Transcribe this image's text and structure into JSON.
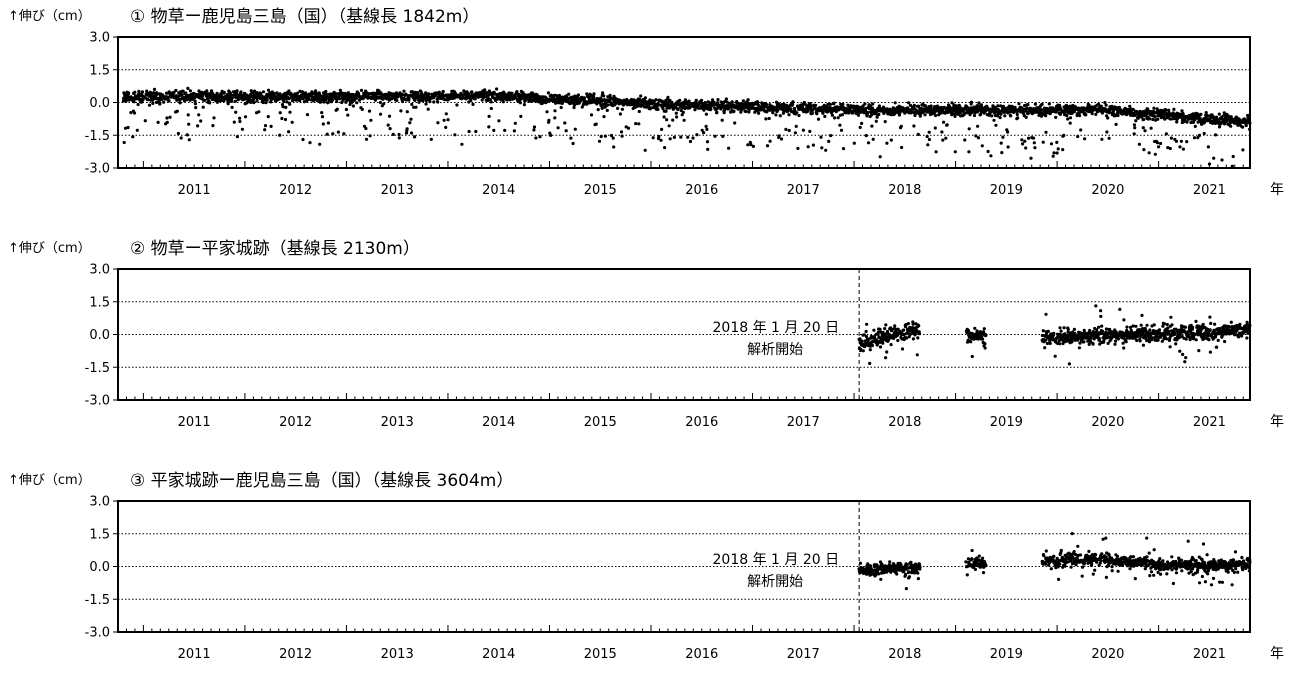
{
  "chart_data": [
    {
      "type": "scatter",
      "y_label": "↑伸び（cm）",
      "title": "① 物草ー鹿児島三島（国）（基線長 1842m）",
      "x_tick_labels": [
        "2011",
        "2012",
        "2013",
        "2014",
        "2015",
        "2016",
        "2017",
        "2018",
        "2019",
        "2020",
        "2021"
      ],
      "x_unit": "年",
      "xlim": [
        2010.75,
        2021.9
      ],
      "ylim": [
        -3.0,
        3.0
      ],
      "y_tick_labels": [
        "3.0",
        "1.5",
        "0.0",
        "-1.5",
        "-3.0"
      ],
      "y_ticks": [
        3.0,
        1.5,
        0.0,
        -1.5,
        -3.0
      ],
      "grid": "dotted horizontal",
      "annotation": null,
      "start": 2010.8,
      "end": 2021.9,
      "gaps": [],
      "trend": [
        [
          2010.8,
          0.25
        ],
        [
          2014.5,
          0.3
        ],
        [
          2016.0,
          -0.05
        ],
        [
          2018.0,
          -0.35
        ],
        [
          2020.5,
          -0.35
        ],
        [
          2021.9,
          -0.9
        ]
      ],
      "spread": 0.25,
      "outlier_rate": 0.12,
      "outlier_depth": 2.0
    },
    {
      "type": "scatter",
      "y_label": "↑伸び（cm）",
      "title": "② 物草ー平家城跡（基線長 2130m）",
      "x_tick_labels": [
        "2011",
        "2012",
        "2013",
        "2014",
        "2015",
        "2016",
        "2017",
        "2018",
        "2019",
        "2020",
        "2021"
      ],
      "x_unit": "年",
      "xlim": [
        2010.75,
        2021.9
      ],
      "ylim": [
        -3.0,
        3.0
      ],
      "y_tick_labels": [
        "3.0",
        "1.5",
        "0.0",
        "-1.5",
        "-3.0"
      ],
      "y_ticks": [
        3.0,
        1.5,
        0.0,
        -1.5,
        -3.0
      ],
      "grid": "dotted horizontal",
      "annotation": {
        "x": 2018.05,
        "lines": [
          "2018 年 1 月 20 日",
          "解析開始"
        ]
      },
      "start": 2018.05,
      "end": 2021.9,
      "gaps": [
        [
          2018.65,
          2019.1
        ],
        [
          2019.3,
          2019.85
        ]
      ],
      "trend": [
        [
          2018.05,
          -0.4
        ],
        [
          2018.6,
          0.2
        ],
        [
          2019.1,
          0.0
        ],
        [
          2020.0,
          -0.15
        ],
        [
          2021.9,
          0.2
        ]
      ],
      "spread": 0.35,
      "outlier_rate": 0.04,
      "outlier_depth": 1.2
    },
    {
      "type": "scatter",
      "y_label": "↑伸び（cm）",
      "title": "③ 平家城跡ー鹿児島三島（国）（基線長 3604m）",
      "x_tick_labels": [
        "2011",
        "2012",
        "2013",
        "2014",
        "2015",
        "2016",
        "2017",
        "2018",
        "2019",
        "2020",
        "2021"
      ],
      "x_unit": "年",
      "xlim": [
        2010.75,
        2021.9
      ],
      "ylim": [
        -3.0,
        3.0
      ],
      "y_tick_labels": [
        "3.0",
        "1.5",
        "0.0",
        "-1.5",
        "-3.0"
      ],
      "y_ticks": [
        3.0,
        1.5,
        0.0,
        -1.5,
        -3.0
      ],
      "grid": "dotted horizontal",
      "annotation": {
        "x": 2018.05,
        "lines": [
          "2018 年 1 月 20 日",
          "解析開始"
        ]
      },
      "start": 2018.05,
      "end": 2021.9,
      "gaps": [
        [
          2018.65,
          2019.1
        ],
        [
          2019.3,
          2019.85
        ]
      ],
      "trend": [
        [
          2018.05,
          -0.2
        ],
        [
          2019.2,
          0.1
        ],
        [
          2020.5,
          0.35
        ],
        [
          2021.0,
          0.05
        ],
        [
          2021.9,
          0.1
        ]
      ],
      "spread": 0.3,
      "outlier_rate": 0.04,
      "outlier_depth": 1.0
    }
  ]
}
